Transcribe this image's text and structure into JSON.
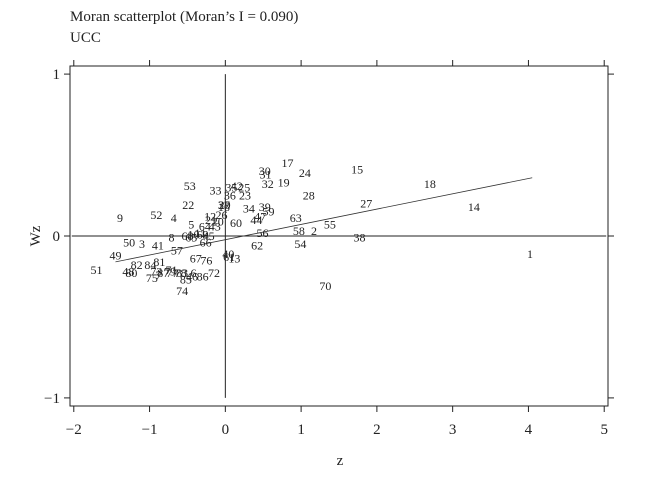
{
  "chart_data": {
    "type": "scatter",
    "title": "Moran scatterplot (Moran’s I = 0.090)",
    "subtitle": "UCC",
    "xlabel": "z",
    "ylabel": "Wz",
    "xlim": [
      -2.05,
      5.05
    ],
    "ylim": [
      -1.05,
      1.05
    ],
    "xticks": [
      -2,
      -1,
      0,
      1,
      2,
      3,
      4,
      5
    ],
    "xtick_labels": [
      "−2",
      "−1",
      "0",
      "1",
      "2",
      "3",
      "4",
      "5"
    ],
    "yticks": [
      -1,
      0,
      1
    ],
    "ytick_labels": [
      "−1",
      "0",
      "1"
    ],
    "regression": {
      "x": [
        -1.45,
        4.05
      ],
      "y": [
        -0.16,
        0.36
      ]
    },
    "points": [
      {
        "label": "1",
        "x": 4.02,
        "y": -0.11
      },
      {
        "label": "2",
        "x": 1.17,
        "y": 0.03
      },
      {
        "label": "13",
        "x": 0.12,
        "y": -0.14
      },
      {
        "label": "14",
        "x": 3.28,
        "y": 0.18
      },
      {
        "label": "15",
        "x": 1.74,
        "y": 0.41
      },
      {
        "label": "17",
        "x": 0.82,
        "y": 0.45
      },
      {
        "label": "18",
        "x": 2.7,
        "y": 0.32
      },
      {
        "label": "19",
        "x": 0.77,
        "y": 0.33
      },
      {
        "label": "22",
        "x": -0.49,
        "y": 0.19
      },
      {
        "label": "23",
        "x": 0.26,
        "y": 0.25
      },
      {
        "label": "24",
        "x": 1.05,
        "y": 0.39
      },
      {
        "label": "27",
        "x": 1.86,
        "y": 0.2
      },
      {
        "label": "28",
        "x": 1.1,
        "y": 0.25
      },
      {
        "label": "30",
        "x": 0.52,
        "y": 0.4
      },
      {
        "label": "31",
        "x": 0.53,
        "y": 0.38
      },
      {
        "label": "32",
        "x": 0.56,
        "y": 0.32
      },
      {
        "label": "33",
        "x": -0.13,
        "y": 0.28
      },
      {
        "label": "34",
        "x": 0.31,
        "y": 0.17
      },
      {
        "label": "38",
        "x": 1.77,
        "y": -0.01
      },
      {
        "label": "39",
        "x": 0.52,
        "y": 0.18
      },
      {
        "label": "4",
        "x": -0.68,
        "y": 0.11
      },
      {
        "label": "40",
        "x": 0.04,
        "y": -0.11
      },
      {
        "label": "41",
        "x": -0.89,
        "y": -0.06
      },
      {
        "label": "42",
        "x": 0.15,
        "y": 0.31
      },
      {
        "label": "44",
        "x": 0.41,
        "y": 0.1
      },
      {
        "label": "49",
        "x": -1.45,
        "y": -0.12
      },
      {
        "label": "5",
        "x": -0.45,
        "y": 0.07
      },
      {
        "label": "50",
        "x": -1.27,
        "y": -0.04
      },
      {
        "label": "51",
        "x": -1.7,
        "y": -0.21
      },
      {
        "label": "52",
        "x": -0.91,
        "y": 0.13
      },
      {
        "label": "53",
        "x": -0.47,
        "y": 0.31
      },
      {
        "label": "54",
        "x": 0.99,
        "y": -0.05
      },
      {
        "label": "55",
        "x": 1.38,
        "y": 0.07
      },
      {
        "label": "56",
        "x": 0.49,
        "y": 0.02
      },
      {
        "label": "57",
        "x": -0.64,
        "y": -0.09
      },
      {
        "label": "58",
        "x": 0.97,
        "y": 0.03
      },
      {
        "label": "59",
        "x": 0.57,
        "y": 0.15
      },
      {
        "label": "60",
        "x": 0.14,
        "y": 0.08
      },
      {
        "label": "61",
        "x": 0.05,
        "y": -0.13
      },
      {
        "label": "62",
        "x": 0.42,
        "y": -0.06
      },
      {
        "label": "63",
        "x": 0.93,
        "y": 0.11
      },
      {
        "label": "64",
        "x": -0.27,
        "y": 0.06
      },
      {
        "label": "66",
        "x": -0.26,
        "y": -0.04
      },
      {
        "label": "67",
        "x": -0.39,
        "y": -0.14
      },
      {
        "label": "70",
        "x": 1.32,
        "y": -0.31
      },
      {
        "label": "72",
        "x": -0.15,
        "y": -0.23
      },
      {
        "label": "74",
        "x": -0.57,
        "y": -0.34
      },
      {
        "label": "75",
        "x": -0.97,
        "y": -0.26
      },
      {
        "label": "76",
        "x": -0.25,
        "y": -0.15
      },
      {
        "label": "78",
        "x": -0.59,
        "y": -0.23
      },
      {
        "label": "79",
        "x": -0.73,
        "y": -0.22
      },
      {
        "label": "8",
        "x": -0.71,
        "y": -0.01
      },
      {
        "label": "81",
        "x": -0.87,
        "y": -0.16
      },
      {
        "label": "82",
        "x": -1.17,
        "y": -0.18
      },
      {
        "label": "84",
        "x": -0.99,
        "y": -0.18
      },
      {
        "label": "85",
        "x": -0.52,
        "y": -0.27
      },
      {
        "label": "86",
        "x": -0.3,
        "y": -0.25
      },
      {
        "label": "87",
        "x": -0.82,
        "y": -0.23
      },
      {
        "label": "9",
        "x": -1.39,
        "y": 0.11
      },
      {
        "label": "3",
        "x": -1.1,
        "y": -0.05
      },
      {
        "label": "6",
        "x": -0.42,
        "y": -0.23
      },
      {
        "label": "7",
        "x": -0.88,
        "y": -0.24
      },
      {
        "label": "10",
        "x": -0.42,
        "y": 0.01
      },
      {
        "label": "11",
        "x": -0.33,
        "y": 0.02
      },
      {
        "label": "12",
        "x": -0.2,
        "y": 0.12
      },
      {
        "label": "16",
        "x": -0.02,
        "y": 0.18
      },
      {
        "label": "20",
        "x": -0.1,
        "y": 0.09
      },
      {
        "label": "21",
        "x": -0.19,
        "y": 0.1
      },
      {
        "label": "25",
        "x": 0.25,
        "y": 0.3
      },
      {
        "label": "26",
        "x": -0.05,
        "y": 0.13
      },
      {
        "label": "29",
        "x": -0.01,
        "y": 0.19
      },
      {
        "label": "35",
        "x": 0.08,
        "y": 0.3
      },
      {
        "label": "36",
        "x": 0.06,
        "y": 0.25
      },
      {
        "label": "37",
        "x": -0.02,
        "y": 0.19
      },
      {
        "label": "43",
        "x": -0.14,
        "y": 0.06
      },
      {
        "label": "45",
        "x": -0.22,
        "y": 0.0
      },
      {
        "label": "46",
        "x": -0.44,
        "y": -0.25
      },
      {
        "label": "47",
        "x": 0.46,
        "y": 0.12
      },
      {
        "label": "48",
        "x": -1.28,
        "y": -0.22
      },
      {
        "label": "65",
        "x": -0.45,
        "y": -0.01
      },
      {
        "label": "68",
        "x": -0.5,
        "y": 0.0
      },
      {
        "label": "69",
        "x": -0.3,
        "y": 0.01
      },
      {
        "label": "71",
        "x": -0.71,
        "y": -0.21
      },
      {
        "label": "73",
        "x": -0.91,
        "y": -0.22
      },
      {
        "label": "77",
        "x": -0.7,
        "y": -0.23
      },
      {
        "label": "80",
        "x": -1.24,
        "y": -0.23
      },
      {
        "label": "83",
        "x": -0.57,
        "y": -0.23
      }
    ]
  }
}
